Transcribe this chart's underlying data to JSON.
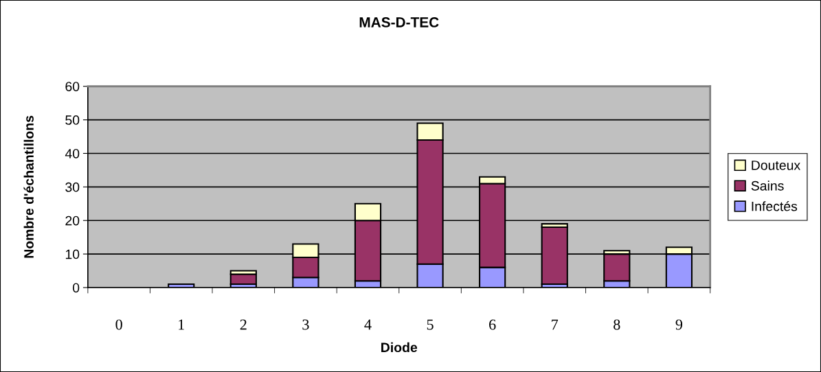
{
  "chart_data": {
    "type": "bar",
    "title": "MAS-D-TEC",
    "xlabel": "Diode",
    "ylabel": "Nombre d'échantillons",
    "categories": [
      "0",
      "1",
      "2",
      "3",
      "4",
      "5",
      "6",
      "7",
      "8",
      "9"
    ],
    "series": [
      {
        "name": "Infectés",
        "color": "#9999ff",
        "values": [
          0,
          1,
          1,
          3,
          2,
          7,
          6,
          1,
          2,
          10
        ]
      },
      {
        "name": "Sains",
        "color": "#993366",
        "values": [
          0,
          0,
          3,
          6,
          18,
          37,
          25,
          17,
          8,
          0
        ]
      },
      {
        "name": "Douteux",
        "color": "#ffffcc",
        "values": [
          0,
          0,
          1,
          4,
          5,
          5,
          2,
          1,
          1,
          2
        ]
      }
    ],
    "stacked": true,
    "ylim": [
      0,
      60
    ],
    "yticks": [
      0,
      10,
      20,
      30,
      40,
      50,
      60
    ],
    "grid": "y",
    "legend": "right"
  }
}
